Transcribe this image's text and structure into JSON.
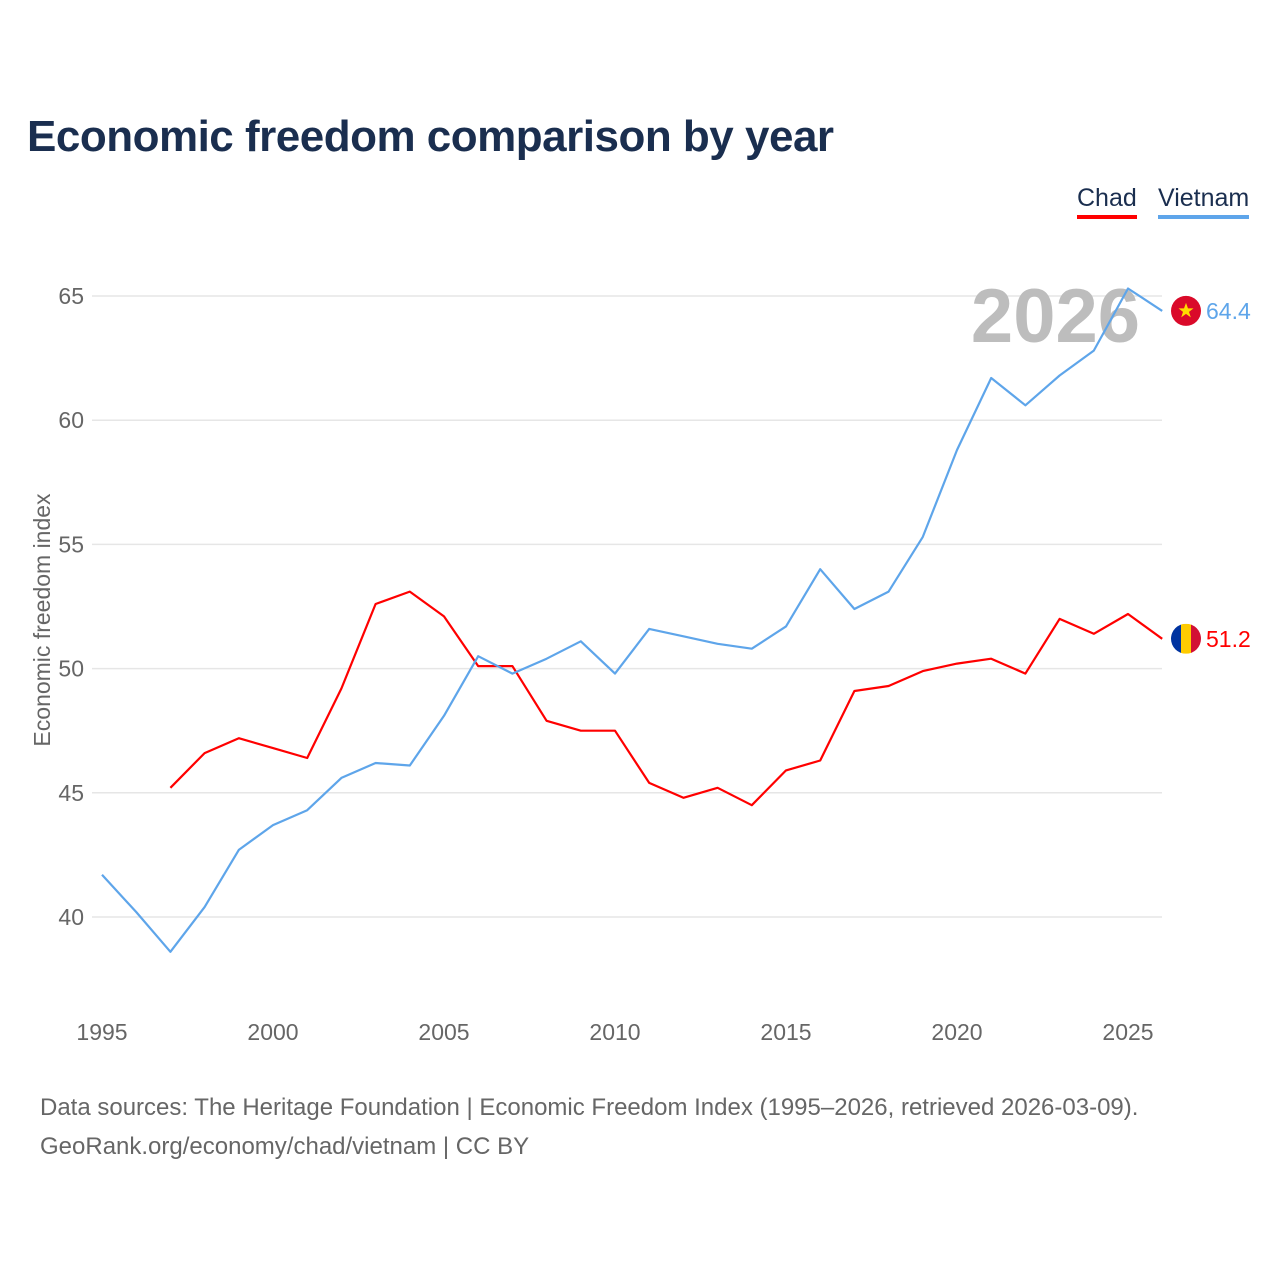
{
  "title": "Economic freedom comparison by year",
  "legend": [
    {
      "label": "Chad",
      "color": "#ff0000"
    },
    {
      "label": "Vietnam",
      "color": "#5ea5ea"
    }
  ],
  "footer": {
    "line1": "Data sources: The Heritage Foundation | Economic Freedom Index (1995–2026, retrieved 2026-03-09).",
    "line2": "GeoRank.org/economy/chad/vietnam | CC BY"
  },
  "chart_data": {
    "type": "line",
    "title": "Economic freedom comparison by year",
    "xlabel": "",
    "ylabel": "Economic freedom index",
    "year_watermark": "2026",
    "xlim": [
      1995,
      2026
    ],
    "ylim": [
      37,
      67
    ],
    "xticks": [
      "1995",
      "2000",
      "2005",
      "2010",
      "2015",
      "2020",
      "2025"
    ],
    "yticks": [
      "40",
      "45",
      "50",
      "55",
      "60",
      "65"
    ],
    "grid": true,
    "legend_position": "top-right",
    "series": [
      {
        "name": "Chad",
        "color": "#ff0000",
        "flag": "chad-flag",
        "end_label": "51.2",
        "x": [
          1997,
          1998,
          1999,
          2000,
          2001,
          2002,
          2003,
          2004,
          2005,
          2006,
          2007,
          2008,
          2009,
          2010,
          2011,
          2012,
          2013,
          2014,
          2015,
          2016,
          2017,
          2018,
          2019,
          2020,
          2021,
          2022,
          2023,
          2024,
          2025,
          2026
        ],
        "values": [
          45.2,
          46.6,
          47.2,
          46.8,
          46.4,
          49.2,
          52.6,
          53.1,
          52.1,
          50.1,
          50.1,
          47.9,
          47.5,
          47.5,
          45.4,
          44.8,
          45.2,
          44.5,
          45.9,
          46.3,
          49.1,
          49.3,
          49.9,
          50.2,
          50.4,
          49.8,
          52.0,
          51.4,
          52.2,
          51.2
        ]
      },
      {
        "name": "Vietnam",
        "color": "#5ea5ea",
        "flag": "vietnam-flag",
        "end_label": "64.4",
        "x": [
          1995,
          1996,
          1997,
          1998,
          1999,
          2000,
          2001,
          2002,
          2003,
          2004,
          2005,
          2006,
          2007,
          2008,
          2009,
          2010,
          2011,
          2012,
          2013,
          2014,
          2015,
          2016,
          2017,
          2018,
          2019,
          2020,
          2021,
          2022,
          2023,
          2024,
          2025,
          2026
        ],
        "values": [
          41.7,
          40.2,
          38.6,
          40.4,
          42.7,
          43.7,
          44.3,
          45.6,
          46.2,
          46.1,
          48.1,
          50.5,
          49.8,
          50.4,
          51.1,
          49.8,
          51.6,
          51.3,
          51.0,
          50.8,
          51.7,
          54.0,
          52.4,
          53.1,
          55.3,
          58.8,
          61.7,
          60.6,
          61.8,
          62.8,
          65.3,
          64.4
        ]
      }
    ]
  }
}
